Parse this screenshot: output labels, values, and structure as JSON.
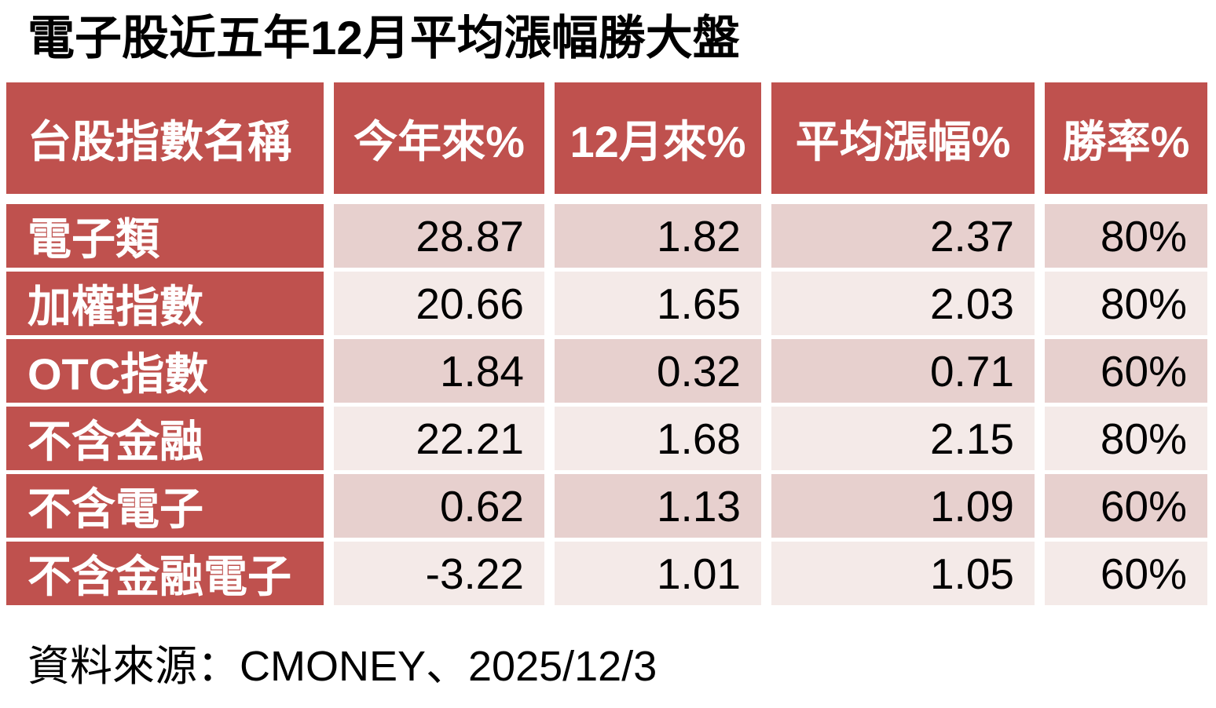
{
  "title": "電子股近五年12月平均漲幅勝大盤",
  "source_note": "資料來源：CMONEY、2025/12/3",
  "colors": {
    "header_red": "#bf514e",
    "row_band_dark": "#e7d0ce",
    "row_band_light": "#f4eae8",
    "header_text": "#ffffff",
    "body_text": "#000000",
    "background": "#ffffff"
  },
  "table": {
    "columns": [
      "台股指數名稱",
      "今年來%",
      "12月來%",
      "平均漲幅%",
      "勝率%"
    ],
    "rows": [
      {
        "name": "電子類",
        "ytd": "28.87",
        "dec": "1.82",
        "avg": "2.37",
        "win": "80%"
      },
      {
        "name": "加權指數",
        "ytd": "20.66",
        "dec": "1.65",
        "avg": "2.03",
        "win": "80%"
      },
      {
        "name": "OTC指數",
        "ytd": "1.84",
        "dec": "0.32",
        "avg": "0.71",
        "win": "60%"
      },
      {
        "name": "不含金融",
        "ytd": "22.21",
        "dec": "1.68",
        "avg": "2.15",
        "win": "80%"
      },
      {
        "name": "不含電子",
        "ytd": "0.62",
        "dec": "1.13",
        "avg": "1.09",
        "win": "60%"
      },
      {
        "name": "不含金融電子",
        "ytd": "-3.22",
        "dec": "1.01",
        "avg": "1.05",
        "win": "60%"
      }
    ]
  },
  "chart_data": {
    "type": "table",
    "title": "電子股近五年12月平均漲幅勝大盤",
    "columns": [
      "台股指數名稱",
      "今年來%",
      "12月來%",
      "平均漲幅%",
      "勝率%"
    ],
    "rows": [
      [
        "電子類",
        28.87,
        1.82,
        2.37,
        "80%"
      ],
      [
        "加權指數",
        20.66,
        1.65,
        2.03,
        "80%"
      ],
      [
        "OTC指數",
        1.84,
        0.32,
        0.71,
        "60%"
      ],
      [
        "不含金融",
        22.21,
        1.68,
        2.15,
        "80%"
      ],
      [
        "不含電子",
        0.62,
        1.13,
        1.09,
        "60%"
      ],
      [
        "不含金融電子",
        -3.22,
        1.01,
        1.05,
        "60%"
      ]
    ],
    "source": "CMONEY",
    "date": "2025/12/3",
    "layout": {
      "row_banding": "alternating dark/light pink starting dark",
      "header_style": "brick red with white bold text",
      "numeric_alignment": "right"
    }
  }
}
